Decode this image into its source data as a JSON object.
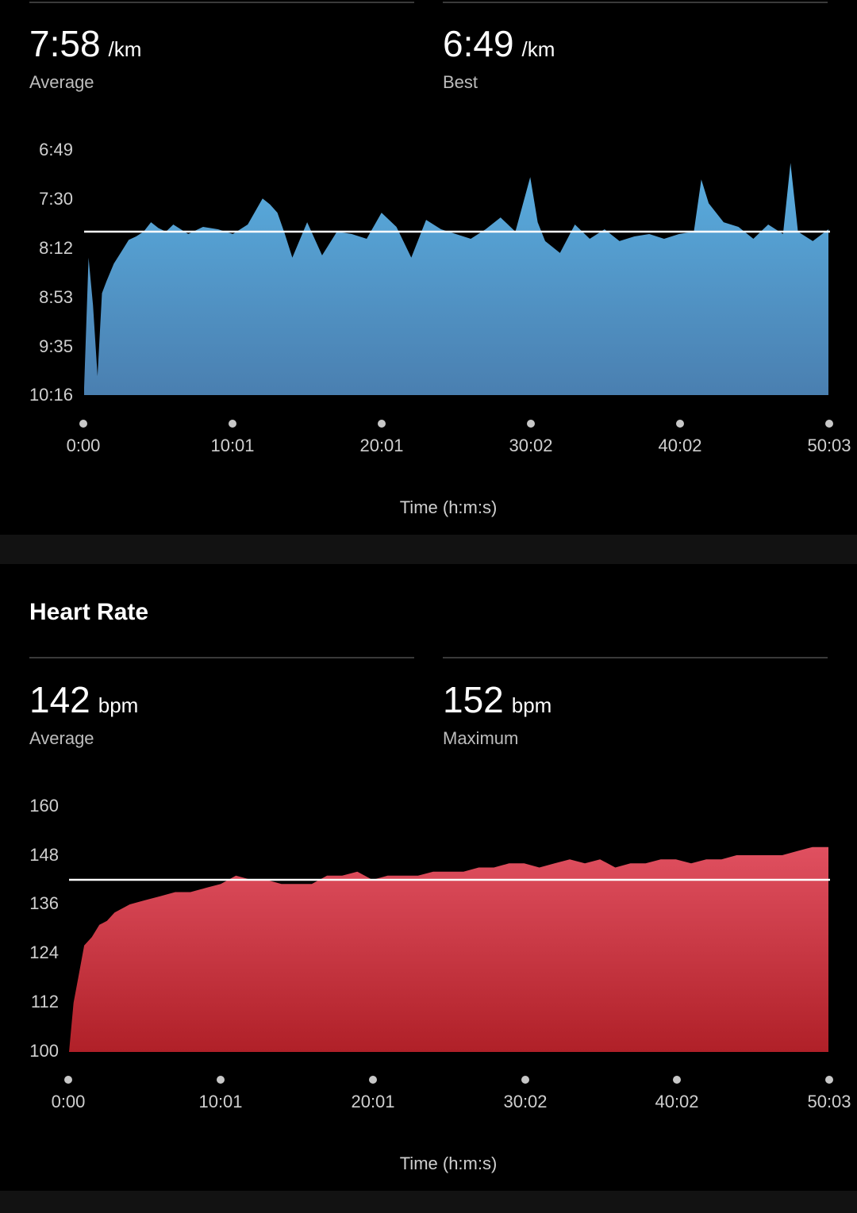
{
  "pace": {
    "average_value": "7:58",
    "average_unit": "/km",
    "average_label": "Average",
    "best_value": "6:49",
    "best_unit": "/km",
    "best_label": "Best",
    "y_ticks": [
      "6:49",
      "7:30",
      "8:12",
      "8:53",
      "9:35",
      "10:16"
    ],
    "x_ticks": [
      "0:00",
      "10:01",
      "20:01",
      "30:02",
      "40:02",
      "50:03"
    ],
    "x_axis_title": "Time (h:m:s)",
    "color_top": "#5aaee0",
    "color_bottom": "#4a7fb0"
  },
  "heart_rate": {
    "section_title": "Heart Rate",
    "average_value": "142",
    "average_unit": "bpm",
    "average_label": "Average",
    "max_value": "152",
    "max_unit": "bpm",
    "max_label": "Maximum",
    "y_ticks": [
      "160",
      "148",
      "136",
      "124",
      "112",
      "100"
    ],
    "x_ticks": [
      "0:00",
      "10:01",
      "20:01",
      "30:02",
      "40:02",
      "50:03"
    ],
    "x_axis_title": "Time (h:m:s)",
    "color_top": "#e05060",
    "color_bottom": "#b02028"
  },
  "chart_data": [
    {
      "type": "area",
      "title": "",
      "xlabel": "Time (h:m:s)",
      "ylabel": "",
      "y_unit": "min/km",
      "y_inverted": true,
      "ylim_seconds_per_km": [
        409,
        616
      ],
      "xlim_minutes": [
        0,
        50.05
      ],
      "average_line_seconds_per_km": 478,
      "series": [
        {
          "x_minutes": [
            0,
            0.3,
            0.6,
            0.9,
            1.2,
            1.5,
            2,
            2.5,
            3,
            3.5,
            4,
            4.5,
            5,
            5.5,
            6,
            7,
            8,
            9,
            10,
            11,
            12,
            12.5,
            13,
            13.5,
            14,
            15,
            16,
            17,
            18,
            19,
            20,
            21,
            22,
            23,
            24,
            25,
            26,
            27,
            28,
            29,
            30,
            30.5,
            31,
            32,
            33,
            34,
            35,
            36,
            37,
            38,
            39,
            40,
            41,
            41.5,
            42,
            43,
            44,
            45,
            46,
            47,
            47.5,
            48,
            49,
            50.05
          ],
          "y_seconds_per_km": [
            610,
            500,
            540,
            600,
            530,
            520,
            505,
            495,
            485,
            482,
            478,
            470,
            475,
            478,
            472,
            480,
            474,
            476,
            480,
            472,
            450,
            455,
            462,
            480,
            500,
            470,
            498,
            478,
            480,
            484,
            462,
            474,
            500,
            468,
            476,
            480,
            484,
            476,
            466,
            478,
            432,
            470,
            486,
            496,
            472,
            484,
            476,
            486,
            482,
            480,
            484,
            480,
            478,
            434,
            454,
            470,
            474,
            484,
            472,
            480,
            420,
            478,
            486,
            476
          ]
        }
      ]
    },
    {
      "type": "area",
      "title": "Heart Rate",
      "xlabel": "Time (h:m:s)",
      "ylabel": "",
      "y_unit": "bpm",
      "ylim": [
        100,
        160
      ],
      "xlim_minutes": [
        0,
        50.05
      ],
      "average_line": 142,
      "series": [
        {
          "x_minutes": [
            0,
            0.3,
            0.6,
            1,
            1.5,
            2,
            2.5,
            3,
            4,
            5,
            6,
            7,
            8,
            9,
            10,
            11,
            12,
            13,
            14,
            15,
            16,
            17,
            18,
            19,
            20,
            21,
            22,
            23,
            24,
            25,
            26,
            27,
            28,
            29,
            30,
            31,
            32,
            33,
            34,
            35,
            36,
            37,
            38,
            39,
            40,
            41,
            42,
            43,
            44,
            45,
            46,
            47,
            48,
            49,
            50.05
          ],
          "values": [
            100,
            112,
            118,
            126,
            128,
            131,
            132,
            134,
            136,
            137,
            138,
            139,
            139,
            140,
            141,
            143,
            142,
            142,
            141,
            141,
            141,
            143,
            143,
            144,
            142,
            143,
            143,
            143,
            144,
            144,
            144,
            145,
            145,
            146,
            146,
            145,
            146,
            147,
            146,
            147,
            145,
            146,
            146,
            147,
            147,
            146,
            147,
            147,
            148,
            148,
            148,
            148,
            149,
            150,
            150
          ]
        }
      ]
    }
  ]
}
